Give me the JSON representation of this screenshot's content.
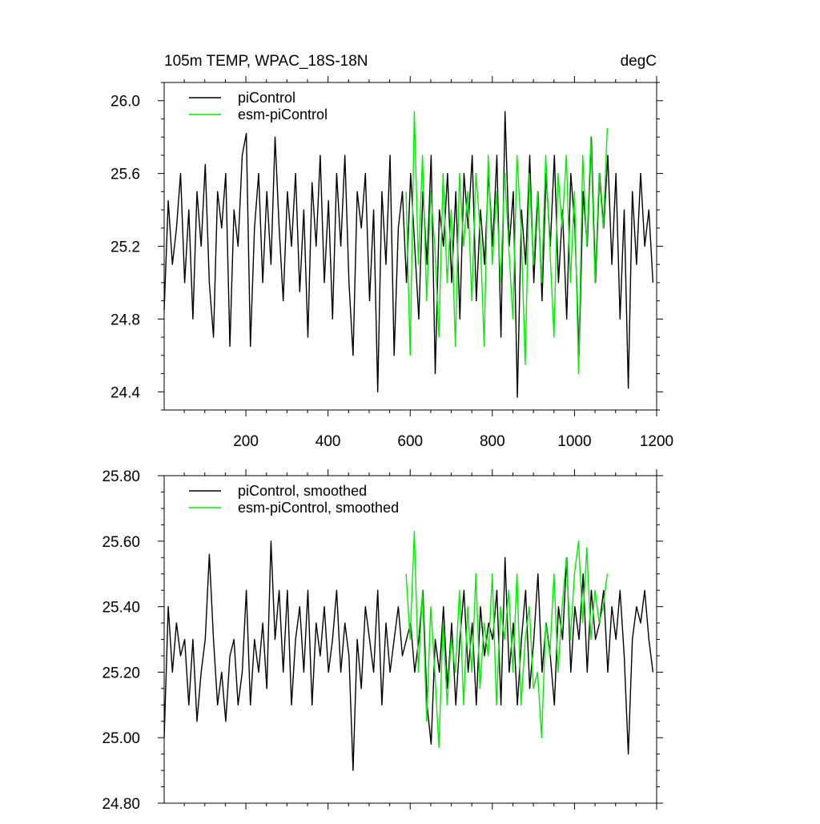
{
  "colors": {
    "piControl": "#000000",
    "esm_piControl": "#00ee00"
  },
  "chart_data": [
    {
      "type": "line",
      "title": "105m TEMP, WPAC_18S-18N",
      "units": "degC",
      "xlim": [
        1,
        1200
      ],
      "ylim": [
        24.3,
        26.1
      ],
      "xticks": [
        200,
        400,
        600,
        800,
        1000,
        1200
      ],
      "xtick_labels": [
        "200",
        "400",
        "600",
        "800",
        "1000",
        "1200"
      ],
      "yticks": [
        24.4,
        24.8,
        25.2,
        25.6,
        26.0
      ],
      "ytick_labels": [
        "24.4",
        "24.8",
        "25.2",
        "25.6",
        "26.0"
      ],
      "legend": "top-left",
      "grid": false,
      "series": [
        {
          "name": "piControl",
          "color": "#000000",
          "x_start": 1,
          "x_step": 10,
          "values": [
            24.85,
            25.45,
            25.1,
            25.3,
            25.6,
            25.0,
            25.4,
            24.8,
            25.5,
            25.2,
            25.65,
            25.0,
            24.7,
            25.5,
            25.3,
            25.6,
            24.65,
            25.4,
            25.2,
            25.7,
            25.82,
            24.65,
            25.3,
            25.6,
            25.0,
            25.5,
            25.1,
            25.8,
            25.3,
            24.9,
            25.5,
            25.2,
            25.6,
            24.95,
            25.4,
            24.7,
            25.55,
            25.2,
            25.7,
            25.0,
            25.45,
            24.8,
            25.6,
            25.2,
            25.7,
            25.0,
            24.6,
            25.5,
            25.3,
            25.6,
            24.9,
            25.4,
            24.4,
            25.5,
            25.1,
            25.7,
            24.6,
            25.3,
            25.5,
            25.0,
            25.6,
            25.2,
            24.8,
            25.5,
            25.1,
            25.7,
            24.5,
            25.4,
            25.2,
            25.6,
            25.0,
            25.5,
            24.8,
            25.6,
            25.3,
            25.7,
            24.9,
            25.4,
            25.1,
            25.6,
            25.2,
            25.7,
            24.7,
            25.94,
            25.2,
            25.5,
            24.37,
            25.4,
            25.1,
            25.7,
            25.0,
            25.5,
            24.9,
            25.6,
            25.2,
            25.7,
            25.0,
            25.4,
            24.8,
            25.6,
            25.3,
            24.6,
            25.5,
            25.2,
            25.8,
            25.0,
            25.6,
            25.3,
            25.7,
            25.1,
            25.6,
            24.8,
            25.4,
            24.42,
            25.5,
            25.1,
            25.6,
            25.2,
            25.4,
            25.0
          ]
        },
        {
          "name": "esm-piControl",
          "color": "#00ee00",
          "x_start": 590,
          "x_step": 10,
          "values": [
            25.5,
            24.6,
            25.94,
            25.1,
            25.7,
            24.9,
            25.5,
            25.2,
            24.7,
            25.6,
            25.0,
            25.4,
            24.65,
            25.6,
            25.2,
            25.5,
            24.9,
            25.6,
            25.3,
            24.65,
            25.7,
            25.1,
            25.5,
            25.0,
            25.6,
            25.2,
            24.8,
            25.7,
            25.3,
            24.55,
            25.6,
            25.1,
            25.5,
            25.0,
            25.7,
            25.2,
            24.7,
            25.6,
            25.3,
            25.7,
            25.0,
            25.5,
            24.5,
            25.7,
            25.2,
            25.8,
            25.0,
            25.6,
            25.3,
            25.85
          ]
        }
      ]
    },
    {
      "type": "line",
      "xlim": [
        1,
        1200
      ],
      "ylim": [
        24.8,
        25.8
      ],
      "xticks": [
        200,
        400,
        600,
        800,
        1000,
        1200
      ],
      "yticks": [
        24.8,
        25.0,
        25.2,
        25.4,
        25.6,
        25.8
      ],
      "ytick_labels": [
        "24.80",
        "25.00",
        "25.20",
        "25.40",
        "25.60",
        "25.80"
      ],
      "legend": "top-left",
      "grid": false,
      "series": [
        {
          "name": "piControl, smoothed",
          "color": "#000000",
          "x_start": 1,
          "x_step": 10,
          "values": [
            25.0,
            25.4,
            25.2,
            25.35,
            25.25,
            25.3,
            25.1,
            25.3,
            25.05,
            25.2,
            25.3,
            25.56,
            25.3,
            25.1,
            25.2,
            25.05,
            25.25,
            25.3,
            25.1,
            25.2,
            25.45,
            25.1,
            25.3,
            25.2,
            25.35,
            25.15,
            25.6,
            25.3,
            25.45,
            25.2,
            25.45,
            25.1,
            25.3,
            25.4,
            25.2,
            25.45,
            25.1,
            25.35,
            25.25,
            25.4,
            25.2,
            25.3,
            25.45,
            25.2,
            25.35,
            25.25,
            24.9,
            25.3,
            25.15,
            25.4,
            25.3,
            25.2,
            25.45,
            25.1,
            25.35,
            25.2,
            25.3,
            25.4,
            25.25,
            25.3,
            25.35,
            25.2,
            25.3,
            25.45,
            25.1,
            24.98,
            25.3,
            25.2,
            25.4,
            25.15,
            25.35,
            25.1,
            25.3,
            25.45,
            25.2,
            25.35,
            25.1,
            25.4,
            25.25,
            25.35,
            25.3,
            25.45,
            25.1,
            25.55,
            25.2,
            25.35,
            25.1,
            25.3,
            25.45,
            25.15,
            25.3,
            25.5,
            25.2,
            25.35,
            25.25,
            25.1,
            25.4,
            25.3,
            25.55,
            25.2,
            25.4,
            25.3,
            25.5,
            25.2,
            25.45,
            25.3,
            25.35,
            25.45,
            25.2,
            25.4,
            25.3,
            25.45,
            25.25,
            24.95,
            25.3,
            25.4,
            25.35,
            25.45,
            25.3,
            25.2
          ]
        },
        {
          "name": "esm-piControl, smoothed",
          "color": "#00ee00",
          "x_start": 590,
          "x_step": 10,
          "values": [
            25.5,
            25.3,
            25.63,
            25.2,
            25.45,
            25.05,
            25.4,
            25.2,
            24.97,
            25.35,
            25.1,
            25.3,
            25.2,
            25.45,
            25.1,
            25.4,
            25.2,
            25.5,
            25.15,
            25.35,
            25.25,
            25.5,
            25.1,
            25.4,
            25.3,
            25.45,
            25.2,
            25.5,
            25.1,
            25.3,
            25.4,
            25.15,
            25.2,
            25.0,
            25.35,
            25.25,
            25.5,
            25.2,
            25.4,
            25.55,
            25.3,
            25.5,
            25.6,
            25.35,
            25.58,
            25.3,
            25.45,
            25.35,
            25.4,
            25.5
          ]
        }
      ]
    }
  ]
}
